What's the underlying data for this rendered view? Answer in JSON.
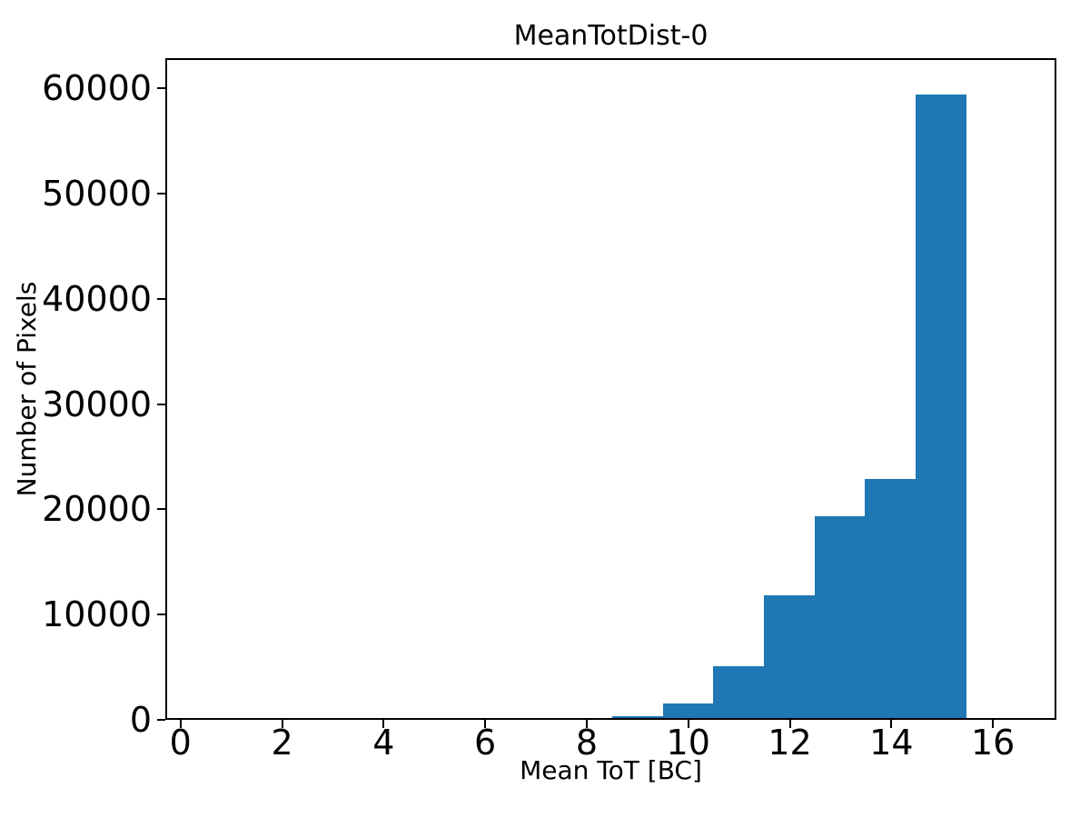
{
  "chart_data": {
    "type": "bar",
    "subtype": "histogram",
    "title": "MeanTotDist-0",
    "xlabel": "Mean ToT [BC]",
    "ylabel": "Number of Pixels",
    "bar_color": "#1f77b4",
    "axis_color": "#000000",
    "background_color": "#ffffff",
    "grid": false,
    "legend": null,
    "xlim": [
      -0.3,
      17.25
    ],
    "ylim": [
      0,
      62850
    ],
    "xticks": [
      0,
      2,
      4,
      6,
      8,
      10,
      12,
      14,
      16
    ],
    "yticks": [
      0,
      10000,
      20000,
      30000,
      40000,
      50000,
      60000
    ],
    "bin_width": 1,
    "bins": [
      {
        "x0": 8.5,
        "x1": 9.5,
        "count": 150
      },
      {
        "x0": 9.5,
        "x1": 10.5,
        "count": 1350
      },
      {
        "x0": 10.5,
        "x1": 11.5,
        "count": 4950
      },
      {
        "x0": 11.5,
        "x1": 12.5,
        "count": 11750
      },
      {
        "x0": 12.5,
        "x1": 13.5,
        "count": 19300
      },
      {
        "x0": 13.5,
        "x1": 14.5,
        "count": 22850
      },
      {
        "x0": 14.5,
        "x1": 15.5,
        "count": 59550
      }
    ]
  }
}
